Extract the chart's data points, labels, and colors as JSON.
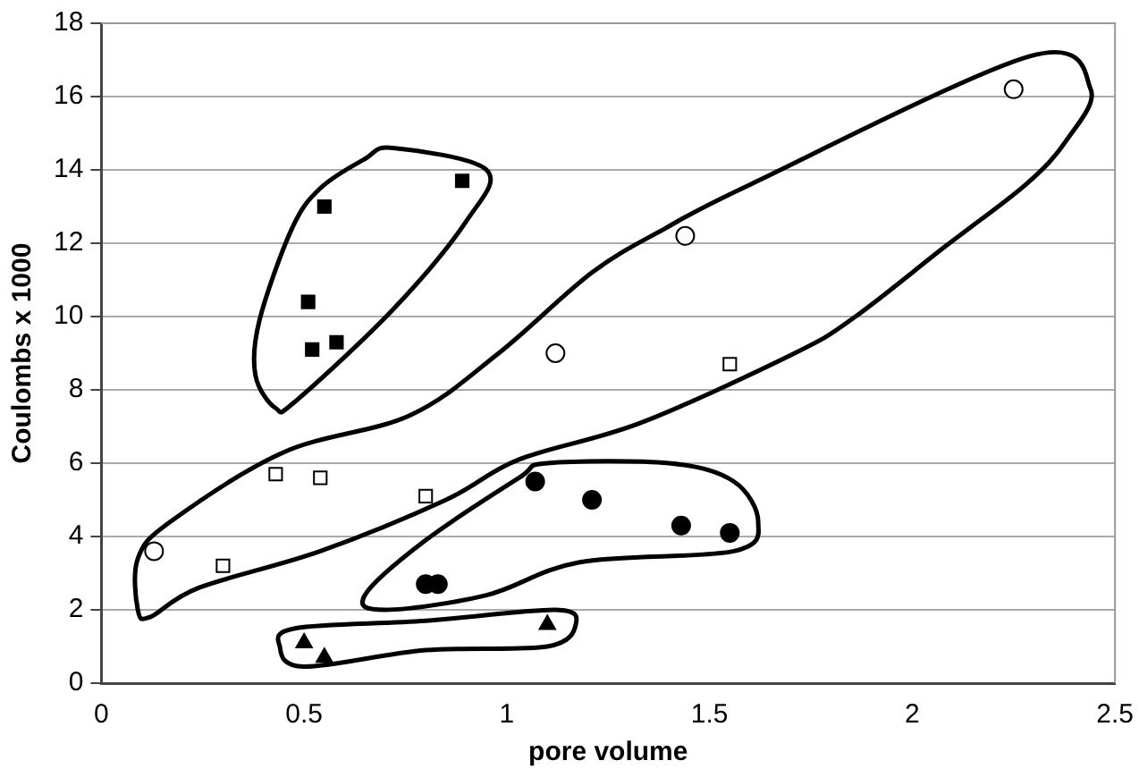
{
  "chart_data": {
    "type": "scatter",
    "xlabel": "pore volume",
    "ylabel": "Coulombs x 1000",
    "xlim": [
      0,
      2.5
    ],
    "xticks": [
      0,
      0.5,
      1,
      1.5,
      2,
      2.5
    ],
    "ylim": [
      0,
      18
    ],
    "yticks": [
      0,
      2,
      4,
      6,
      8,
      10,
      12,
      14,
      16,
      18
    ],
    "grid": "y",
    "legend": false,
    "series": [
      {
        "color": "#000000",
        "marker": "square",
        "x": [
          0.55,
          0.89,
          0.51,
          0.52,
          0.58
        ],
        "values": [
          13.0,
          13.7,
          10.4,
          9.1,
          9.3
        ]
      },
      {
        "color": "#ffffff",
        "marker": "square",
        "x": [
          0.43,
          0.54,
          0.8,
          0.3,
          1.55
        ],
        "values": [
          5.7,
          5.6,
          5.1,
          3.2,
          8.7
        ]
      },
      {
        "color": "#ffffff",
        "marker": "circle",
        "x": [
          0.13,
          1.44,
          1.12,
          2.25
        ],
        "values": [
          3.6,
          12.2,
          9.0,
          16.2
        ]
      },
      {
        "color": "#000000",
        "marker": "circle",
        "x": [
          1.07,
          1.21,
          1.43,
          1.55,
          0.8,
          0.83
        ],
        "values": [
          5.5,
          5.0,
          4.3,
          4.1,
          2.7,
          2.7
        ]
      },
      {
        "color": "#000000",
        "marker": "triangle",
        "x": [
          0.5,
          0.55,
          1.1
        ],
        "values": [
          1.1,
          0.7,
          1.6
        ]
      }
    ]
  }
}
